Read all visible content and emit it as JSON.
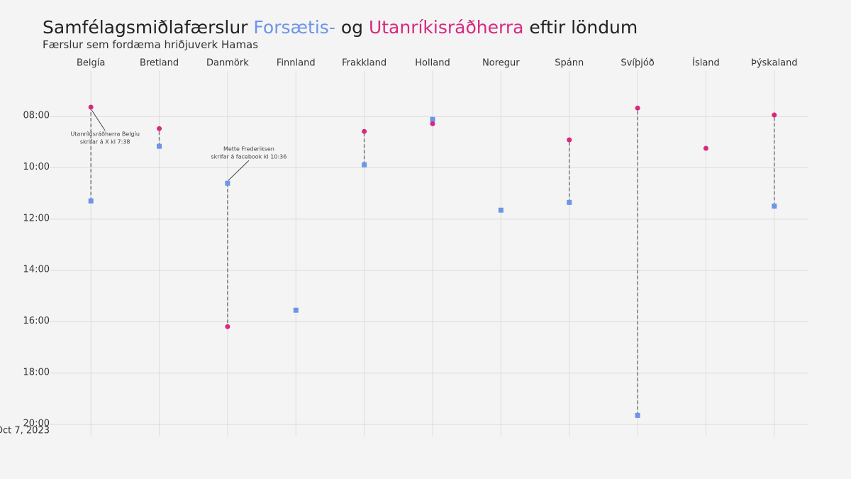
{
  "chart_data": {
    "type": "dumbbell",
    "title_parts": [
      "Samfélagsmiðlafærslur",
      "og",
      "eftir löndum"
    ],
    "subtitle": "Færslur sem fordæma hriðjuverk Hamas",
    "categories": [
      "Belgía",
      "Bretland",
      "Danmörk",
      "Finnland",
      "Frakkland",
      "Holland",
      "Noregur",
      "Spánn",
      "Svíþjóð",
      "Ísland",
      "Þýskaland"
    ],
    "series": [
      {
        "name": "Forsætis-",
        "color": "#6d94e8",
        "marker": "square",
        "values": [
          11.29,
          9.16,
          10.6,
          15.55,
          9.88,
          8.11,
          11.65,
          11.35,
          19.65,
          null,
          11.49
        ]
      },
      {
        "name": "Utanríkisráðherra",
        "color": "#d6297f",
        "marker": "circle",
        "values": [
          7.633,
          8.47,
          16.19,
          null,
          8.58,
          8.28,
          null,
          8.91,
          7.67,
          9.24,
          7.94
        ]
      }
    ],
    "ylim": [
      6.5,
      20.33
    ],
    "y_reversed": true,
    "yticks": [
      {
        "value": 8,
        "label": "08:00"
      },
      {
        "value": 10,
        "label": "10:00"
      },
      {
        "value": 12,
        "label": "12:00"
      },
      {
        "value": 14,
        "label": "14:00"
      },
      {
        "value": 16,
        "label": "16:00"
      },
      {
        "value": 18,
        "label": "18:00"
      },
      {
        "value": 20,
        "label": "20:00"
      }
    ],
    "date_label": "Oct 7, 2023",
    "grid": true,
    "annotations": [
      {
        "lines": [
          "Utanríkisráðherra Belgíu",
          "skrifar á X kl 7:38"
        ],
        "category": 0,
        "series": 1
      },
      {
        "lines": [
          "Mette Frederiksen",
          "skrifar á facebook kl 10:36"
        ],
        "category": 2,
        "series": 0
      }
    ]
  }
}
